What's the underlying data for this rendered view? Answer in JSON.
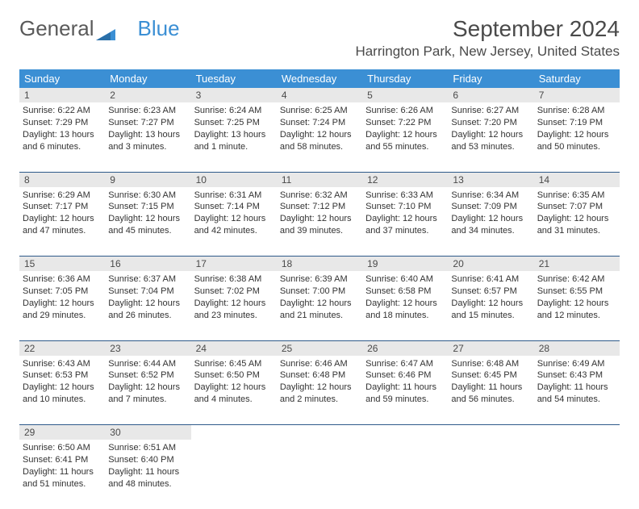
{
  "logo": {
    "text1": "General",
    "text2": "Blue"
  },
  "title": "September 2024",
  "location": "Harrington Park, New Jersey, United States",
  "colors": {
    "header_bg": "#3b8fd4",
    "header_text": "#ffffff",
    "daynum_bg": "#e8e8e8",
    "divider": "#2e5a8a",
    "text": "#333333",
    "title_text": "#4a4a4a"
  },
  "day_headers": [
    "Sunday",
    "Monday",
    "Tuesday",
    "Wednesday",
    "Thursday",
    "Friday",
    "Saturday"
  ],
  "weeks": [
    [
      {
        "n": "1",
        "sr": "Sunrise: 6:22 AM",
        "ss": "Sunset: 7:29 PM",
        "dl": "Daylight: 13 hours and 6 minutes."
      },
      {
        "n": "2",
        "sr": "Sunrise: 6:23 AM",
        "ss": "Sunset: 7:27 PM",
        "dl": "Daylight: 13 hours and 3 minutes."
      },
      {
        "n": "3",
        "sr": "Sunrise: 6:24 AM",
        "ss": "Sunset: 7:25 PM",
        "dl": "Daylight: 13 hours and 1 minute."
      },
      {
        "n": "4",
        "sr": "Sunrise: 6:25 AM",
        "ss": "Sunset: 7:24 PM",
        "dl": "Daylight: 12 hours and 58 minutes."
      },
      {
        "n": "5",
        "sr": "Sunrise: 6:26 AM",
        "ss": "Sunset: 7:22 PM",
        "dl": "Daylight: 12 hours and 55 minutes."
      },
      {
        "n": "6",
        "sr": "Sunrise: 6:27 AM",
        "ss": "Sunset: 7:20 PM",
        "dl": "Daylight: 12 hours and 53 minutes."
      },
      {
        "n": "7",
        "sr": "Sunrise: 6:28 AM",
        "ss": "Sunset: 7:19 PM",
        "dl": "Daylight: 12 hours and 50 minutes."
      }
    ],
    [
      {
        "n": "8",
        "sr": "Sunrise: 6:29 AM",
        "ss": "Sunset: 7:17 PM",
        "dl": "Daylight: 12 hours and 47 minutes."
      },
      {
        "n": "9",
        "sr": "Sunrise: 6:30 AM",
        "ss": "Sunset: 7:15 PM",
        "dl": "Daylight: 12 hours and 45 minutes."
      },
      {
        "n": "10",
        "sr": "Sunrise: 6:31 AM",
        "ss": "Sunset: 7:14 PM",
        "dl": "Daylight: 12 hours and 42 minutes."
      },
      {
        "n": "11",
        "sr": "Sunrise: 6:32 AM",
        "ss": "Sunset: 7:12 PM",
        "dl": "Daylight: 12 hours and 39 minutes."
      },
      {
        "n": "12",
        "sr": "Sunrise: 6:33 AM",
        "ss": "Sunset: 7:10 PM",
        "dl": "Daylight: 12 hours and 37 minutes."
      },
      {
        "n": "13",
        "sr": "Sunrise: 6:34 AM",
        "ss": "Sunset: 7:09 PM",
        "dl": "Daylight: 12 hours and 34 minutes."
      },
      {
        "n": "14",
        "sr": "Sunrise: 6:35 AM",
        "ss": "Sunset: 7:07 PM",
        "dl": "Daylight: 12 hours and 31 minutes."
      }
    ],
    [
      {
        "n": "15",
        "sr": "Sunrise: 6:36 AM",
        "ss": "Sunset: 7:05 PM",
        "dl": "Daylight: 12 hours and 29 minutes."
      },
      {
        "n": "16",
        "sr": "Sunrise: 6:37 AM",
        "ss": "Sunset: 7:04 PM",
        "dl": "Daylight: 12 hours and 26 minutes."
      },
      {
        "n": "17",
        "sr": "Sunrise: 6:38 AM",
        "ss": "Sunset: 7:02 PM",
        "dl": "Daylight: 12 hours and 23 minutes."
      },
      {
        "n": "18",
        "sr": "Sunrise: 6:39 AM",
        "ss": "Sunset: 7:00 PM",
        "dl": "Daylight: 12 hours and 21 minutes."
      },
      {
        "n": "19",
        "sr": "Sunrise: 6:40 AM",
        "ss": "Sunset: 6:58 PM",
        "dl": "Daylight: 12 hours and 18 minutes."
      },
      {
        "n": "20",
        "sr": "Sunrise: 6:41 AM",
        "ss": "Sunset: 6:57 PM",
        "dl": "Daylight: 12 hours and 15 minutes."
      },
      {
        "n": "21",
        "sr": "Sunrise: 6:42 AM",
        "ss": "Sunset: 6:55 PM",
        "dl": "Daylight: 12 hours and 12 minutes."
      }
    ],
    [
      {
        "n": "22",
        "sr": "Sunrise: 6:43 AM",
        "ss": "Sunset: 6:53 PM",
        "dl": "Daylight: 12 hours and 10 minutes."
      },
      {
        "n": "23",
        "sr": "Sunrise: 6:44 AM",
        "ss": "Sunset: 6:52 PM",
        "dl": "Daylight: 12 hours and 7 minutes."
      },
      {
        "n": "24",
        "sr": "Sunrise: 6:45 AM",
        "ss": "Sunset: 6:50 PM",
        "dl": "Daylight: 12 hours and 4 minutes."
      },
      {
        "n": "25",
        "sr": "Sunrise: 6:46 AM",
        "ss": "Sunset: 6:48 PM",
        "dl": "Daylight: 12 hours and 2 minutes."
      },
      {
        "n": "26",
        "sr": "Sunrise: 6:47 AM",
        "ss": "Sunset: 6:46 PM",
        "dl": "Daylight: 11 hours and 59 minutes."
      },
      {
        "n": "27",
        "sr": "Sunrise: 6:48 AM",
        "ss": "Sunset: 6:45 PM",
        "dl": "Daylight: 11 hours and 56 minutes."
      },
      {
        "n": "28",
        "sr": "Sunrise: 6:49 AM",
        "ss": "Sunset: 6:43 PM",
        "dl": "Daylight: 11 hours and 54 minutes."
      }
    ],
    [
      {
        "n": "29",
        "sr": "Sunrise: 6:50 AM",
        "ss": "Sunset: 6:41 PM",
        "dl": "Daylight: 11 hours and 51 minutes."
      },
      {
        "n": "30",
        "sr": "Sunrise: 6:51 AM",
        "ss": "Sunset: 6:40 PM",
        "dl": "Daylight: 11 hours and 48 minutes."
      },
      null,
      null,
      null,
      null,
      null
    ]
  ]
}
